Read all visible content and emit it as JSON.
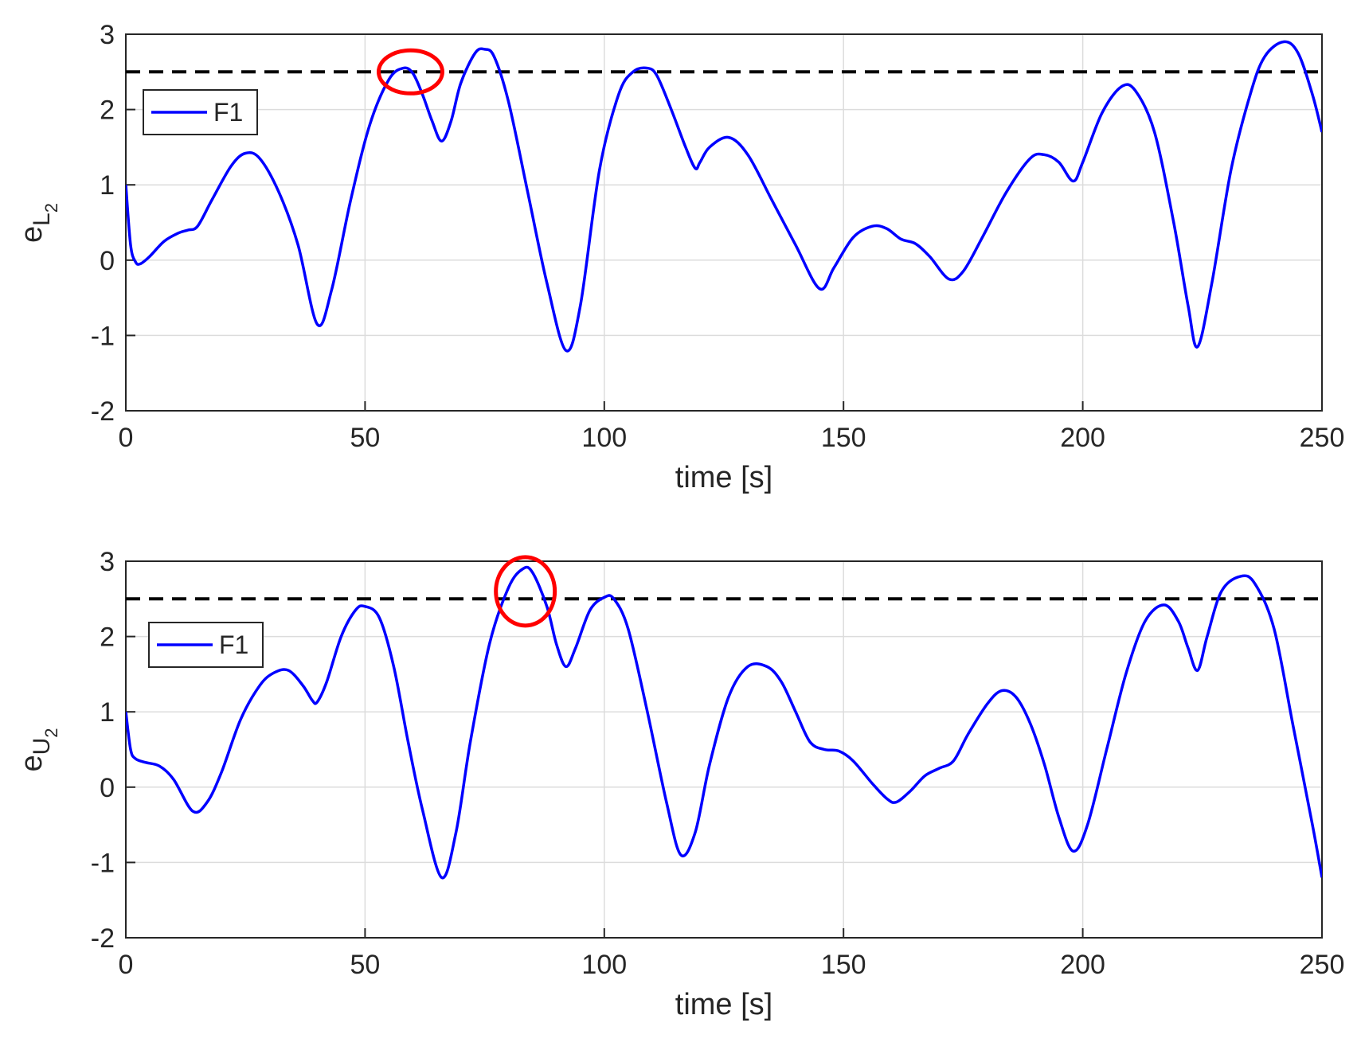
{
  "colors": {
    "series": "#0000ff",
    "threshold": "#000000",
    "marker": "#ff0000",
    "grid": "#dcdcdc",
    "axis": "#262626"
  },
  "chart_data": [
    {
      "type": "line",
      "xlabel": "time [s]",
      "ylabel_base": "e",
      "ylabel_sub": "L",
      "ylabel_subsub": "2",
      "xlim": [
        0,
        250
      ],
      "ylim": [
        -2,
        3
      ],
      "xticks": [
        "0",
        "50",
        "100",
        "150",
        "200",
        "250"
      ],
      "yticks": [
        "-2",
        "-1",
        "0",
        "1",
        "2",
        "3"
      ],
      "grid": true,
      "legend_position": "top-left",
      "threshold": 2.5,
      "highlight": {
        "x": 59.5,
        "y": 2.5
      },
      "series": [
        {
          "name": "F1",
          "x": [
            0,
            1,
            2,
            3,
            5,
            8,
            11,
            13,
            15,
            18,
            22,
            25,
            28,
            32,
            36,
            40,
            43,
            47,
            51,
            55,
            58,
            60,
            62,
            64,
            66,
            68,
            70,
            73,
            75,
            77,
            80,
            84,
            88,
            92,
            95,
            99,
            103,
            106,
            109,
            111,
            114,
            117,
            119,
            120,
            122,
            126,
            130,
            135,
            140,
            145,
            148,
            152,
            156,
            159,
            162,
            165,
            168,
            172,
            175,
            179,
            184,
            189,
            192,
            195,
            198,
            200,
            204,
            208,
            211,
            215,
            219,
            222,
            224,
            227,
            231,
            235,
            238,
            242,
            245,
            248,
            250
          ],
          "y": [
            1.0,
            0.2,
            -0.02,
            -0.05,
            0.05,
            0.25,
            0.36,
            0.4,
            0.45,
            0.8,
            1.25,
            1.42,
            1.35,
            0.9,
            0.2,
            -0.85,
            -0.4,
            0.8,
            1.8,
            2.4,
            2.55,
            2.48,
            2.2,
            1.85,
            1.58,
            1.85,
            2.35,
            2.75,
            2.8,
            2.7,
            2.1,
            0.9,
            -0.3,
            -1.2,
            -0.6,
            1.2,
            2.2,
            2.5,
            2.55,
            2.45,
            2.0,
            1.5,
            1.22,
            1.3,
            1.5,
            1.63,
            1.4,
            0.8,
            0.2,
            -0.38,
            -0.1,
            0.3,
            0.45,
            0.42,
            0.28,
            0.22,
            0.05,
            -0.25,
            -0.15,
            0.3,
            0.9,
            1.35,
            1.4,
            1.3,
            1.05,
            1.3,
            1.95,
            2.3,
            2.25,
            1.7,
            0.5,
            -0.6,
            -1.15,
            -0.3,
            1.2,
            2.2,
            2.7,
            2.9,
            2.75,
            2.2,
            1.7
          ]
        }
      ]
    },
    {
      "type": "line",
      "xlabel": "time [s]",
      "ylabel_base": "e",
      "ylabel_sub": "U",
      "ylabel_subsub": "2",
      "xlim": [
        0,
        250
      ],
      "ylim": [
        -2,
        3
      ],
      "xticks": [
        "0",
        "50",
        "100",
        "150",
        "200",
        "250"
      ],
      "yticks": [
        "-2",
        "-1",
        "0",
        "1",
        "2",
        "3"
      ],
      "grid": true,
      "legend_position": "top-left",
      "threshold": 2.5,
      "highlight": {
        "x": 83.5,
        "y": 2.6
      },
      "series": [
        {
          "name": "F1",
          "x": [
            0,
            1,
            2,
            4,
            7,
            10,
            14,
            17,
            20,
            24,
            28,
            31,
            34,
            37,
            39,
            40,
            42,
            45,
            48,
            50,
            53,
            56,
            59,
            62,
            66,
            69,
            72,
            76,
            80,
            83,
            85,
            88,
            90,
            92,
            94,
            97,
            100,
            102,
            105,
            109,
            113,
            116,
            119,
            122,
            126,
            130,
            134,
            137,
            140,
            143,
            146,
            149,
            152,
            156,
            159,
            161,
            164,
            167,
            170,
            173,
            176,
            180,
            183,
            186,
            189,
            192,
            195,
            198,
            201,
            205,
            209,
            213,
            217,
            220,
            222,
            224,
            226,
            229,
            233,
            236,
            240,
            244,
            248,
            250
          ],
          "y": [
            1.0,
            0.5,
            0.38,
            0.33,
            0.28,
            0.1,
            -0.32,
            -0.2,
            0.2,
            0.9,
            1.35,
            1.52,
            1.55,
            1.35,
            1.15,
            1.13,
            1.4,
            2.0,
            2.35,
            2.4,
            2.25,
            1.6,
            0.6,
            -0.3,
            -1.2,
            -0.6,
            0.6,
            1.9,
            2.65,
            2.9,
            2.85,
            2.4,
            1.9,
            1.6,
            1.85,
            2.35,
            2.52,
            2.5,
            2.1,
            1.0,
            -0.2,
            -0.9,
            -0.6,
            0.3,
            1.2,
            1.6,
            1.6,
            1.4,
            1.0,
            0.6,
            0.5,
            0.48,
            0.35,
            0.05,
            -0.15,
            -0.2,
            -0.05,
            0.15,
            0.25,
            0.35,
            0.7,
            1.1,
            1.28,
            1.2,
            0.85,
            0.3,
            -0.4,
            -0.85,
            -0.5,
            0.5,
            1.5,
            2.2,
            2.42,
            2.2,
            1.85,
            1.55,
            2.0,
            2.6,
            2.8,
            2.7,
            2.1,
            0.8,
            -0.5,
            -1.2
          ]
        }
      ]
    }
  ]
}
